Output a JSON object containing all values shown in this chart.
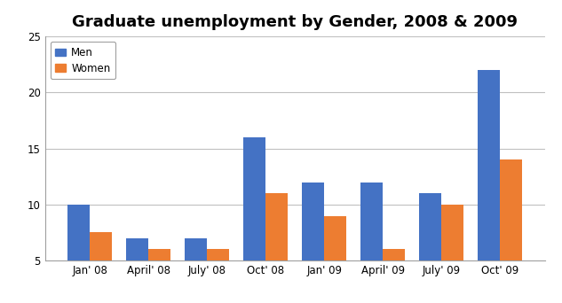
{
  "title": "Graduate unemployment by Gender, 2008 & 2009",
  "categories": [
    "Jan' 08",
    "April' 08",
    "July' 08",
    "Oct' 08",
    "Jan' 09",
    "April' 09",
    "July' 09",
    "Oct' 09"
  ],
  "men": [
    10,
    7,
    7,
    16,
    12,
    12,
    11,
    22
  ],
  "women": [
    7.5,
    6,
    6,
    11,
    9,
    6,
    10,
    14
  ],
  "men_color": "#4472C4",
  "women_color": "#ED7D31",
  "ylim": [
    5,
    25
  ],
  "yticks": [
    5,
    10,
    15,
    20,
    25
  ],
  "bar_width": 0.38,
  "legend_labels": [
    "Men",
    "Women"
  ],
  "background_color": "#ffffff",
  "grid_color": "#c0c0c0",
  "title_fontsize": 13,
  "tick_fontsize": 8.5,
  "spine_color": "#a0a0a0"
}
